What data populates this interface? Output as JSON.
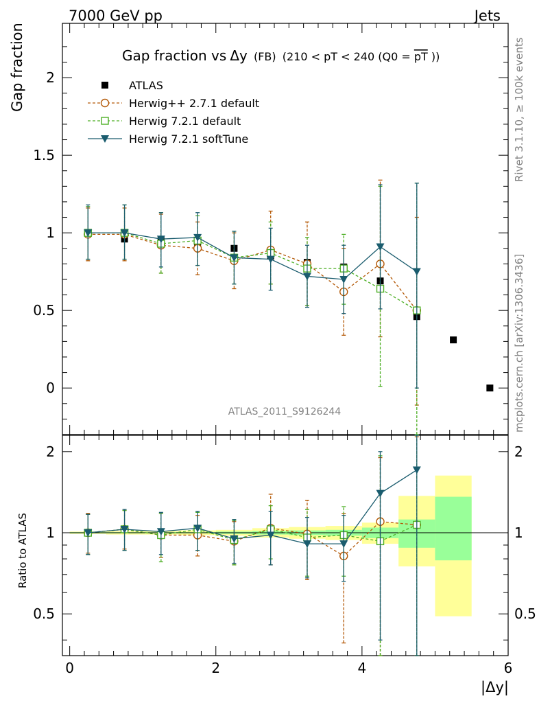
{
  "header": {
    "left_label": "7000 GeV pp",
    "right_label": "Jets",
    "title_main": "Gap fraction vs",
    "title_dy": "Δy",
    "title_fb": "(FB)",
    "title_range": "(210 < pT < 240 (Q0 =",
    "title_q0": "pT",
    "title_close": "))"
  },
  "side_labels": {
    "rivet": "Rivet 3.1.10, ≥ 100k events",
    "mcplots": "mcplots.cern.ch [arXiv:1306.3436]"
  },
  "analysis_tag": "ATLAS_2011_S9126244",
  "colors": {
    "atlas": "#000000",
    "herwigpp": "#b35806",
    "herwig721": "#4daf25",
    "softtune": "#1a5c6e",
    "band_yellow": "#ffff99",
    "band_green": "#99ff99"
  },
  "chart_data": [
    {
      "type": "scatter",
      "panel": "main",
      "ylabel": "Gap fraction",
      "xlim": [
        -0.1,
        6.0
      ],
      "ylim": [
        -0.3,
        2.35
      ],
      "yticks": [
        0,
        0.5,
        1,
        1.5,
        2
      ],
      "ytick_labels": [
        "0",
        "0.5",
        "1",
        "1.5",
        "2"
      ],
      "x": [
        0.25,
        0.75,
        1.25,
        1.75,
        2.25,
        2.75,
        3.25,
        3.75,
        4.25,
        4.75,
        5.25,
        5.75
      ],
      "series": [
        {
          "name": "ATLAS",
          "marker": "filled-square",
          "line": "none",
          "values": [
            1.0,
            0.96,
            0.95,
            0.92,
            0.9,
            0.85,
            0.81,
            0.78,
            0.69,
            0.46,
            0.31,
            0.0
          ]
        },
        {
          "name": "Herwig++ 2.7.1 default",
          "marker": "open-circle",
          "line": "dashed",
          "values": [
            0.99,
            0.99,
            0.92,
            0.9,
            0.82,
            0.89,
            0.8,
            0.62,
            0.8,
            0.5
          ],
          "err_up": [
            0.17,
            0.17,
            0.2,
            0.17,
            0.18,
            0.25,
            0.27,
            0.28,
            0.54,
            0.6
          ],
          "err_down": [
            0.17,
            0.17,
            0.18,
            0.17,
            0.18,
            0.22,
            0.27,
            0.28,
            0.47,
            0.61
          ]
        },
        {
          "name": "Herwig 7.2.1 default",
          "marker": "open-square",
          "line": "dashed",
          "values": [
            1.0,
            1.0,
            0.93,
            0.95,
            0.84,
            0.87,
            0.77,
            0.77,
            0.64,
            0.5
          ],
          "err_up": [
            0.17,
            0.18,
            0.2,
            0.16,
            0.17,
            0.2,
            0.2,
            0.22,
            0.66,
            0.82
          ],
          "err_down": [
            0.17,
            0.17,
            0.19,
            0.16,
            0.17,
            0.2,
            0.24,
            0.23,
            0.63,
            0.8
          ]
        },
        {
          "name": "Herwig 7.2.1 softTune",
          "marker": "filled-triangle-down",
          "line": "solid",
          "values": [
            1.0,
            1.0,
            0.96,
            0.97,
            0.84,
            0.83,
            0.72,
            0.7,
            0.91,
            0.75
          ],
          "err_up": [
            0.18,
            0.18,
            0.17,
            0.16,
            0.17,
            0.2,
            0.2,
            0.22,
            0.4,
            0.57
          ],
          "err_down": [
            0.17,
            0.17,
            0.18,
            0.18,
            0.17,
            0.2,
            0.2,
            0.22,
            0.4,
            0.75
          ]
        }
      ]
    },
    {
      "type": "scatter",
      "panel": "ratio",
      "xlabel": "|Δy|",
      "ylabel": "Ratio to ATLAS",
      "xlim": [
        -0.1,
        6.0
      ],
      "ylim": [
        0.35,
        2.3
      ],
      "xticks": [
        0,
        2,
        4,
        6
      ],
      "xtick_labels": [
        "0",
        "2",
        "4",
        "6"
      ],
      "yticks": [
        0.5,
        1,
        2
      ],
      "ytick_labels": [
        "0.5",
        "1",
        "2"
      ],
      "x": [
        0.25,
        0.75,
        1.25,
        1.75,
        2.25,
        2.75,
        3.25,
        3.75,
        4.25,
        4.75
      ],
      "bands": {
        "edges": [
          0.0,
          0.5,
          1.0,
          1.5,
          2.0,
          2.5,
          3.0,
          3.5,
          4.0,
          4.5,
          5.0,
          5.5
        ],
        "green_low": [
          0.995,
          0.995,
          0.995,
          0.995,
          0.99,
          0.985,
          0.98,
          0.975,
          0.955,
          0.88,
          0.79
        ],
        "green_high": [
          1.005,
          1.005,
          1.005,
          1.005,
          1.01,
          1.015,
          1.02,
          1.025,
          1.045,
          1.12,
          1.36
        ],
        "yellow_low": [
          0.99,
          0.985,
          0.985,
          0.98,
          0.975,
          0.96,
          0.95,
          0.94,
          0.91,
          0.75,
          0.49
        ],
        "yellow_high": [
          1.01,
          1.015,
          1.015,
          1.02,
          1.025,
          1.04,
          1.05,
          1.06,
          1.09,
          1.37,
          1.63
        ]
      },
      "series": [
        {
          "name": "Herwig++ 2.7.1 default",
          "marker": "open-circle",
          "line": "dashed",
          "values": [
            1.0,
            1.03,
            0.98,
            0.98,
            0.93,
            1.04,
            0.99,
            0.82,
            1.1,
            1.07
          ],
          "err_up": [
            0.18,
            0.18,
            0.2,
            0.18,
            0.17,
            0.35,
            0.33,
            0.36,
            0.8,
            1.2
          ],
          "err_down": [
            0.16,
            0.16,
            0.17,
            0.16,
            0.17,
            0.28,
            0.32,
            0.43,
            0.8,
            0.9
          ]
        },
        {
          "name": "Herwig 7.2.1 default",
          "marker": "open-square",
          "line": "dashed",
          "values": [
            1.0,
            1.03,
            0.98,
            1.03,
            0.94,
            1.03,
            0.96,
            0.98,
            0.93,
            1.07
          ],
          "err_up": [
            0.17,
            0.18,
            0.2,
            0.16,
            0.17,
            0.23,
            0.26,
            0.27,
            1.0,
            1.3
          ],
          "err_down": [
            0.17,
            0.17,
            0.2,
            0.17,
            0.18,
            0.23,
            0.27,
            0.29,
            0.9,
            0.9
          ]
        },
        {
          "name": "Herwig 7.2.1 softTune",
          "marker": "filled-triangle-down",
          "line": "solid",
          "values": [
            1.0,
            1.03,
            1.01,
            1.04,
            0.95,
            0.98,
            0.91,
            0.91,
            1.4,
            1.71
          ],
          "err_up": [
            0.17,
            0.19,
            0.18,
            0.16,
            0.17,
            0.22,
            0.23,
            0.25,
            0.6,
            0.9
          ],
          "err_down": [
            0.17,
            0.17,
            0.18,
            0.18,
            0.18,
            0.22,
            0.23,
            0.25,
            1.0,
            1.5
          ]
        }
      ]
    }
  ]
}
